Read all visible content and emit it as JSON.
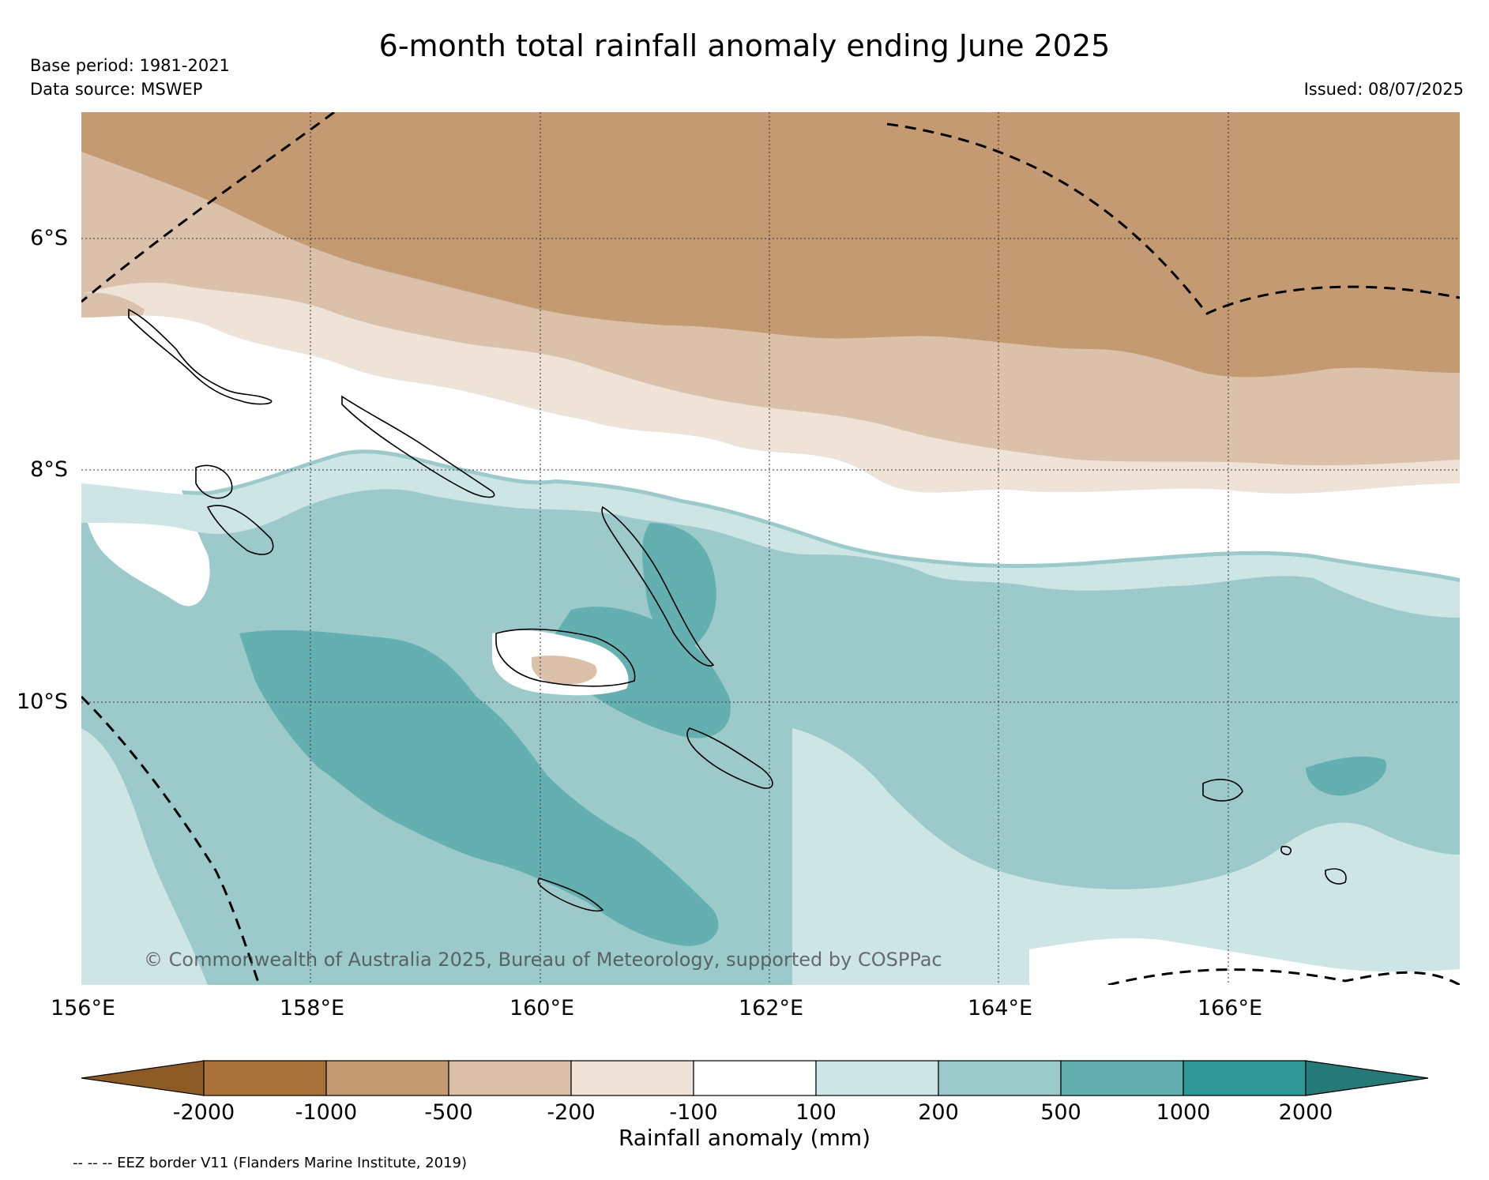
{
  "title": "6-month total rainfall anomaly ending June 2025",
  "base_period": "Base period: 1981-2021",
  "data_source": "Data source: MSWEP",
  "issued": "Issued: 08/07/2025",
  "copyright": "© Commonwealth of Australia 2025, Bureau of Meteorology, supported by COSPPac",
  "eez_note": "-- -- -- EEZ border V11 (Flanders Marine Institute, 2019)",
  "map": {
    "lat_labels": [
      "6°S",
      "8°S",
      "10°S"
    ],
    "lon_labels": [
      "156°E",
      "158°E",
      "160°E",
      "162°E",
      "164°E",
      "166°E"
    ],
    "lon_values": [
      156,
      158,
      160,
      162,
      164,
      166
    ],
    "lat_values": [
      -6,
      -8,
      -10
    ],
    "lon_range": [
      156,
      168
    ],
    "lat_range": [
      -12.4,
      -4.8
    ]
  },
  "legend": {
    "label": "Rainfall anomaly (mm)",
    "ticks": [
      "-2000",
      "-1000",
      "-500",
      "-200",
      "-100",
      "100",
      "200",
      "500",
      "1000",
      "2000"
    ],
    "colors": {
      "lt_-2000": "#8c5a24",
      "-2000_-1000": "#a8723a",
      "-1000_-500": "#c49a72",
      "-500_-200": "#dbc1aa",
      "-200_-100": "#efe3d8",
      "-100_100": "#ffffff",
      "100_200": "#cde5e4",
      "200_500": "#9ccacb",
      "500_1000": "#64b0b1",
      "1000_2000": "#2f9795",
      "gt_2000": "#257a78"
    }
  }
}
